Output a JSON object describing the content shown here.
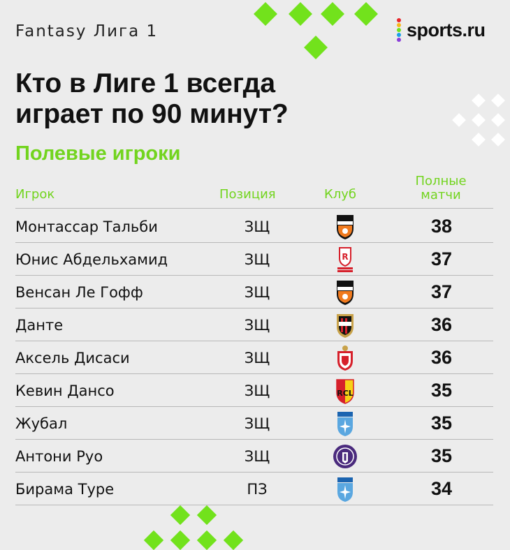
{
  "header": {
    "league_title": "Fantasy Лига 1",
    "brand": "sports.ru",
    "brand_dot_colors": [
      "#e8262b",
      "#f8b81b",
      "#72e21c",
      "#1aa0e8",
      "#8b3fd9"
    ]
  },
  "headline": {
    "line1": "Кто в Лиге 1 всегда",
    "line2": "играет по 90 минут?"
  },
  "subtitle": "Полевые игроки",
  "table": {
    "columns": {
      "player": "Игрок",
      "position": "Позиция",
      "club": "Клуб",
      "full_line1": "Полные",
      "full_line2": "матчи"
    },
    "rows": [
      {
        "player": "Монтассар Тальби",
        "position": "ЗЩ",
        "club_icon": "lorient-crest-icon",
        "games": "38"
      },
      {
        "player": "Юнис Абдельхамид",
        "position": "ЗЩ",
        "club_icon": "reims-crest-icon",
        "games": "37"
      },
      {
        "player": "Венсан Ле Гофф",
        "position": "ЗЩ",
        "club_icon": "lorient-crest-icon",
        "games": "37"
      },
      {
        "player": "Данте",
        "position": "ЗЩ",
        "club_icon": "nice-crest-icon",
        "games": "36"
      },
      {
        "player": "Аксель Дисаси",
        "position": "ЗЩ",
        "club_icon": "monaco-crest-icon",
        "games": "36"
      },
      {
        "player": "Кевин Дансо",
        "position": "ЗЩ",
        "club_icon": "lens-crest-icon",
        "games": "35"
      },
      {
        "player": "Жубал",
        "position": "ЗЩ",
        "club_icon": "auxerre-crest-icon",
        "games": "35"
      },
      {
        "player": "Антони Руо",
        "position": "ЗЩ",
        "club_icon": "toulouse-crest-icon",
        "games": "35"
      },
      {
        "player": "Бирама Туре",
        "position": "ПЗ",
        "club_icon": "auxerre-crest-icon",
        "games": "34"
      }
    ]
  },
  "colors": {
    "accent_green": "#72e21c",
    "background": "#ececec"
  }
}
